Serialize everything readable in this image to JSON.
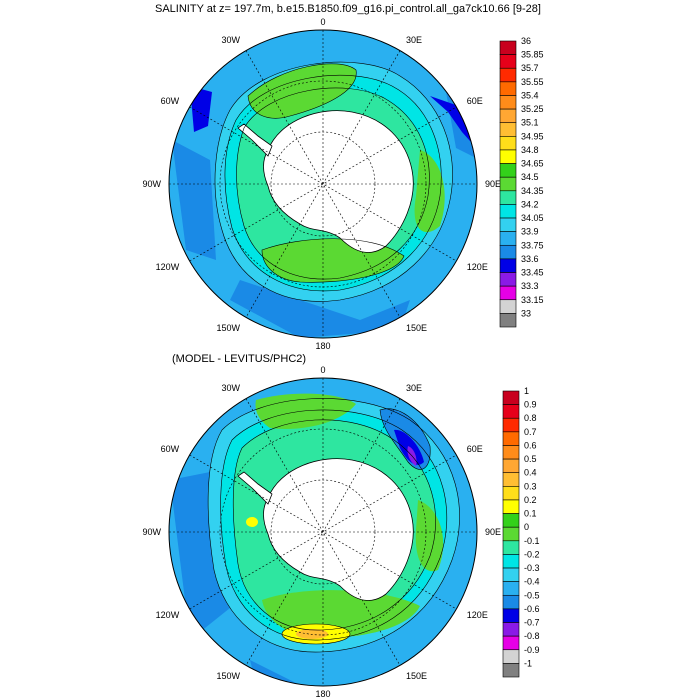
{
  "panels": [
    {
      "title": "SALINITY at z= 197.7m, b.e15.B1850.f09_g16.pi_control.all_ga7ck10.66 [9-28]",
      "lon_labels": [
        "0",
        "30E",
        "60E",
        "90E",
        "120E",
        "150E",
        "180",
        "150W",
        "120W",
        "90W",
        "60W",
        "30W"
      ],
      "colorbar": {
        "labels": [
          "36",
          "35.85",
          "35.7",
          "35.55",
          "35.4",
          "35.25",
          "35.1",
          "34.95",
          "34.8",
          "34.65",
          "34.5",
          "34.35",
          "34.2",
          "34.05",
          "33.9",
          "33.75",
          "33.6",
          "33.45",
          "33.3",
          "33.15",
          "33"
        ],
        "colors": [
          "#c8001e",
          "#e6001a",
          "#ff2a00",
          "#ff6a00",
          "#ff8c1a",
          "#ffa733",
          "#ffbe33",
          "#ffde1a",
          "#ffff00",
          "#33d11a",
          "#5bd933",
          "#2ee6a0",
          "#00e5e5",
          "#33d1f0",
          "#2ab0f0",
          "#1a8ae6",
          "#0000e6",
          "#8a1ae6",
          "#e600e6",
          "#d3d3d3",
          "#808080"
        ]
      }
    },
    {
      "title": "(MODEL - LEVITUS/PHC2)",
      "lon_labels": [
        "0",
        "30E",
        "60E",
        "90E",
        "120E",
        "150E",
        "180",
        "150W",
        "120W",
        "90W",
        "60W",
        "30W"
      ],
      "colorbar": {
        "labels": [
          "1",
          "0.9",
          "0.8",
          "0.7",
          "0.6",
          "0.5",
          "0.4",
          "0.3",
          "0.2",
          "0.1",
          "0",
          "-0.1",
          "-0.2",
          "-0.3",
          "-0.4",
          "-0.5",
          "-0.6",
          "-0.7",
          "-0.8",
          "-0.9",
          "-1"
        ],
        "colors": [
          "#c8001e",
          "#e6001a",
          "#ff2a00",
          "#ff6a00",
          "#ff8c1a",
          "#ffa733",
          "#ffbe33",
          "#ffde1a",
          "#ffff00",
          "#33d11a",
          "#5bd933",
          "#2ee6a0",
          "#00e5e5",
          "#33d1f0",
          "#2ab0f0",
          "#1a8ae6",
          "#0000e6",
          "#8a1ae6",
          "#e600e6",
          "#d3d3d3",
          "#808080"
        ]
      }
    }
  ]
}
